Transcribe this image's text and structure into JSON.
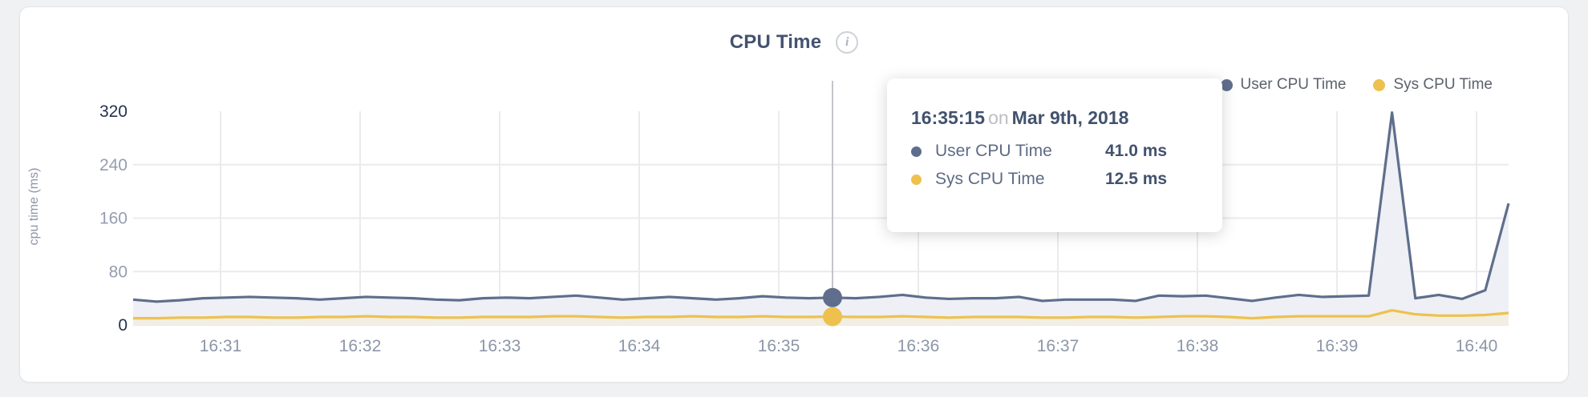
{
  "header": {
    "title": "CPU Time",
    "info_icon": "i"
  },
  "legend": {
    "items": [
      {
        "label": "User CPU Time",
        "color": "#5f6e8c"
      },
      {
        "label": "Sys CPU Time",
        "color": "#eec14f"
      }
    ]
  },
  "tooltip": {
    "time": "16:35:15",
    "conjunction": "on",
    "date": "Mar 9th, 2018",
    "rows": [
      {
        "label": "User CPU Time",
        "value": "41.0 ms",
        "color": "#5f6e8c"
      },
      {
        "label": "Sys CPU Time",
        "value": "12.5 ms",
        "color": "#eec14f"
      }
    ]
  },
  "chart_data": {
    "type": "area",
    "title": "CPU Time",
    "xlabel": "",
    "ylabel": "cpu time (ms)",
    "ylim": [
      0,
      320
    ],
    "y_ticks": [
      0,
      80,
      160,
      240,
      320
    ],
    "y_ticks_strong": [
      0,
      320
    ],
    "x_ticks": [
      "16:31",
      "16:32",
      "16:33",
      "16:34",
      "16:35",
      "16:36",
      "16:37",
      "16:38",
      "16:39",
      "16:40"
    ],
    "sample_interval_seconds": 10,
    "grid": true,
    "legend_position": "top-right",
    "series": [
      {
        "name": "User CPU Time",
        "color": "#5f6e8c",
        "fill": "#eef0f5",
        "values": [
          38,
          35,
          37,
          40,
          41,
          42,
          41,
          40,
          38,
          40,
          42,
          41,
          40,
          38,
          37,
          40,
          41,
          40,
          42,
          44,
          41,
          38,
          40,
          42,
          40,
          38,
          40,
          43,
          41,
          40,
          41,
          40,
          42,
          45,
          41,
          39,
          40,
          40,
          42,
          36,
          38,
          38,
          38,
          36,
          44,
          43,
          44,
          40,
          36,
          41,
          45,
          42,
          43,
          44,
          318,
          40,
          45,
          39,
          52,
          182
        ]
      },
      {
        "name": "Sys CPU Time",
        "color": "#eec14f",
        "fill": "#f2eee2",
        "values": [
          10,
          10,
          11,
          11,
          12,
          12,
          11,
          11,
          12,
          12,
          13,
          12,
          12,
          11,
          11,
          12,
          12,
          12,
          13,
          13,
          12,
          11,
          12,
          12,
          13,
          12,
          12,
          13,
          12,
          12,
          12.5,
          12,
          12,
          13,
          12,
          11,
          12,
          12,
          12,
          11,
          11,
          12,
          12,
          11,
          12,
          13,
          13,
          12,
          10,
          12,
          13,
          13,
          13,
          13,
          22,
          16,
          14,
          14,
          15,
          18
        ]
      }
    ],
    "highlight": {
      "index": 30,
      "time": "16:35:15",
      "date": "Mar 9th, 2018",
      "values": {
        "User CPU Time": 41.0,
        "Sys CPU Time": 12.5
      },
      "unit": "ms"
    }
  },
  "colors": {
    "grid": "#ebebee",
    "axis_tick": "#959db0",
    "axis_tick_strong": "#26334e",
    "x_tick": "#8d96a8",
    "crosshair": "#c3c5ca"
  }
}
